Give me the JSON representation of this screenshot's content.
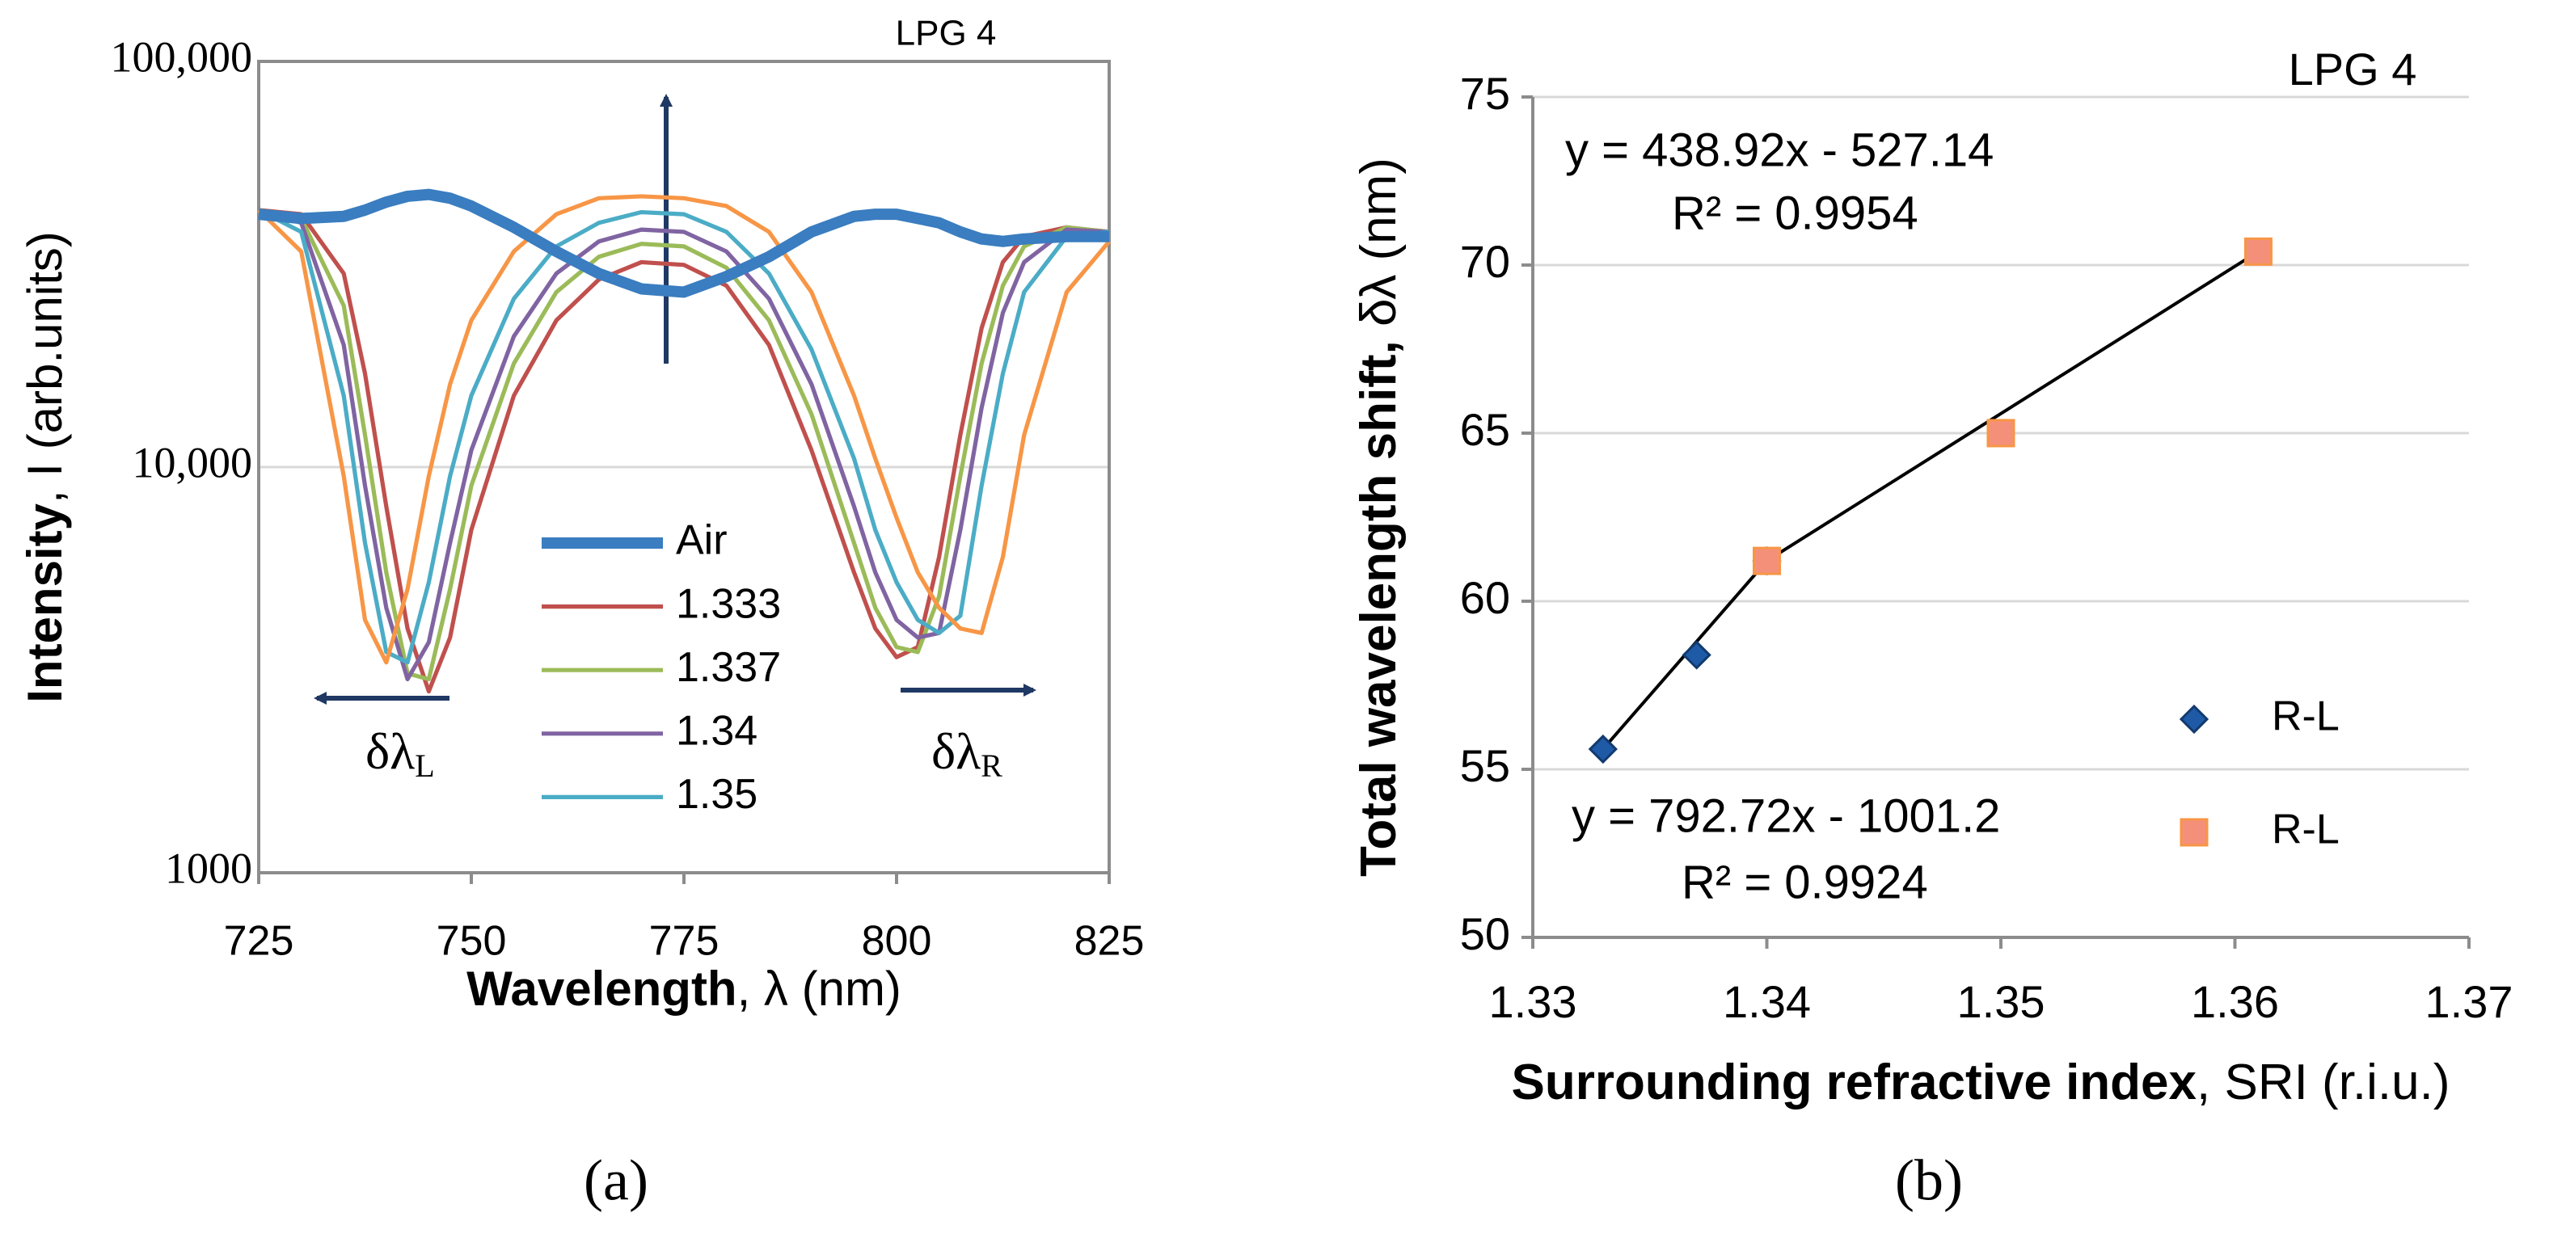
{
  "chart_data": [
    {
      "type": "line",
      "title": "LPG 4",
      "xlabel": {
        "bold": "Wavelength",
        "text": ", λ (nm)"
      },
      "ylabel": {
        "bold": "Intensity",
        "text": ", I (arb.units)"
      },
      "caption": "(a)",
      "x": [
        725,
        730,
        735,
        737.5,
        740,
        742.5,
        745,
        747.5,
        750,
        755,
        760,
        765,
        770,
        775,
        780,
        785,
        790,
        795,
        797.5,
        800,
        802.5,
        805,
        807.5,
        810,
        812.5,
        815,
        820,
        825
      ],
      "xlim": [
        725,
        825
      ],
      "xticks": [
        725,
        750,
        775,
        800,
        825
      ],
      "ylim": [
        1000,
        100000
      ],
      "yticks": [
        1000,
        {
          "value": 10000,
          "label": "10,000"
        },
        {
          "value": 100000,
          "label": "100,000"
        }
      ],
      "yscale": "log",
      "grid": true,
      "annotations": [
        {
          "text": "δλ",
          "sub": "L"
        },
        {
          "text": "δλ",
          "sub": "R"
        }
      ],
      "series": [
        {
          "name": "Air",
          "color": "#3a7dc0",
          "style": "thick",
          "values": [
            42000,
            41000,
            41500,
            43000,
            45000,
            46500,
            47000,
            46000,
            44000,
            39000,
            34000,
            30000,
            27500,
            27000,
            29500,
            33000,
            38000,
            41500,
            42000,
            42000,
            41000,
            40000,
            38000,
            36500,
            36000,
            36500,
            37000,
            37000
          ]
        },
        {
          "name": "1.333",
          "color": "#c0504d",
          "values": [
            43000,
            42000,
            30000,
            17000,
            8000,
            4000,
            2800,
            3800,
            7000,
            15000,
            23000,
            29000,
            32000,
            31500,
            28000,
            20000,
            11000,
            5500,
            4000,
            3400,
            3600,
            6000,
            12000,
            22000,
            32000,
            37000,
            39000,
            38000
          ]
        },
        {
          "name": "1.337",
          "color": "#9bbb59",
          "values": [
            43000,
            41000,
            25000,
            12000,
            5500,
            3100,
            3000,
            5000,
            9000,
            18000,
            27000,
            33000,
            35500,
            35000,
            31000,
            23000,
            13500,
            6500,
            4500,
            3600,
            3500,
            4800,
            9500,
            18000,
            28000,
            35000,
            39000,
            38000
          ]
        },
        {
          "name": "1.34",
          "color": "#8064a2",
          "values": [
            43000,
            40000,
            20000,
            9000,
            4500,
            3000,
            3700,
            6500,
            11000,
            21000,
            30000,
            36000,
            38500,
            38000,
            34000,
            26000,
            16000,
            8000,
            5500,
            4200,
            3800,
            3900,
            7000,
            14000,
            24000,
            32000,
            38500,
            38000
          ]
        },
        {
          "name": "1.35",
          "color": "#4bacc6",
          "values": [
            43000,
            38000,
            15000,
            6500,
            3500,
            3300,
            5200,
            9500,
            15000,
            26000,
            35000,
            40000,
            42500,
            42000,
            38000,
            30000,
            19500,
            10500,
            7000,
            5200,
            4200,
            3900,
            4300,
            9000,
            17000,
            27000,
            37000,
            38000
          ]
        },
        {
          "color": "#f79646",
          "values": [
            43000,
            34000,
            9500,
            4200,
            3300,
            5000,
            9500,
            16000,
            23000,
            34000,
            42000,
            46000,
            46500,
            46000,
            44000,
            38000,
            27000,
            15000,
            10500,
            7500,
            5500,
            4500,
            4000,
            3900,
            6000,
            12000,
            27000,
            36000
          ]
        }
      ]
    },
    {
      "type": "scatter",
      "title": "LPG 4",
      "xlabel": {
        "bold": "Surrounding refractive index",
        "text": ", SRI (r.i.u.)"
      },
      "ylabel": {
        "bold": "Total wavelength shift,",
        "text": " δλ (nm)"
      },
      "caption": "(b)",
      "xlim": [
        1.33,
        1.37
      ],
      "xticks": [
        1.33,
        1.34,
        1.35,
        1.36,
        1.37
      ],
      "ylim": [
        50,
        75
      ],
      "yticks": [
        50,
        55,
        60,
        65,
        70,
        75
      ],
      "grid": true,
      "annotations": [
        "y = 438.92x - 527.14",
        "R² = 0.9954",
        "y = 792.72x - 1001.2",
        "R² = 0.9924"
      ],
      "series": [
        {
          "name": "R-L",
          "marker": "diamond",
          "color": "#1f5aa6",
          "x": [
            1.333,
            1.337,
            1.34
          ],
          "values": [
            55.6,
            58.4,
            61.2
          ],
          "trendline": true
        },
        {
          "name": "R-L",
          "marker": "square",
          "color": "#f4907a",
          "x": [
            1.34,
            1.35,
            1.361
          ],
          "values": [
            61.2,
            65,
            70.4
          ],
          "trendline": true
        }
      ]
    }
  ]
}
